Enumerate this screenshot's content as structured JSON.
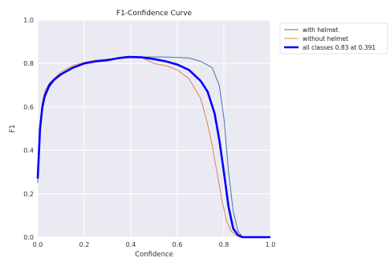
{
  "chart_data": {
    "type": "line",
    "title": "F1-Confidence Curve",
    "xlabel": "Confidence",
    "ylabel": "F1",
    "xlim": [
      0.0,
      1.0
    ],
    "ylim": [
      0.0,
      1.0
    ],
    "xticks": [
      "0.0",
      "0.2",
      "0.4",
      "0.6",
      "0.8",
      "1.0"
    ],
    "yticks": [
      "0.0",
      "0.2",
      "0.4",
      "0.6",
      "0.8",
      "1.0"
    ],
    "grid": true,
    "legend_position": "outside-top-right",
    "series": [
      {
        "name": "with helmet",
        "color": "#4c72b0",
        "x": [
          0.0,
          0.01,
          0.02,
          0.03,
          0.05,
          0.07,
          0.1,
          0.15,
          0.2,
          0.25,
          0.3,
          0.35,
          0.38,
          0.45,
          0.55,
          0.65,
          0.7,
          0.75,
          0.78,
          0.8,
          0.82,
          0.84,
          0.86,
          0.88,
          0.9,
          1.0
        ],
        "values": [
          0.25,
          0.48,
          0.58,
          0.64,
          0.69,
          0.72,
          0.75,
          0.78,
          0.8,
          0.81,
          0.815,
          0.825,
          0.83,
          0.83,
          0.83,
          0.825,
          0.81,
          0.78,
          0.7,
          0.55,
          0.3,
          0.12,
          0.03,
          0.0,
          0.0,
          0.0
        ]
      },
      {
        "name": "without helmet",
        "color": "#dd8452",
        "x": [
          0.0,
          0.01,
          0.02,
          0.03,
          0.05,
          0.07,
          0.1,
          0.15,
          0.2,
          0.25,
          0.3,
          0.35,
          0.4,
          0.45,
          0.5,
          0.55,
          0.6,
          0.65,
          0.7,
          0.73,
          0.75,
          0.77,
          0.79,
          0.81,
          0.83,
          0.85,
          0.87,
          0.9,
          1.0
        ],
        "values": [
          0.3,
          0.52,
          0.62,
          0.67,
          0.71,
          0.73,
          0.76,
          0.79,
          0.805,
          0.815,
          0.82,
          0.825,
          0.83,
          0.825,
          0.8,
          0.79,
          0.77,
          0.73,
          0.64,
          0.52,
          0.42,
          0.3,
          0.18,
          0.08,
          0.03,
          0.01,
          0.0,
          0.0,
          0.0
        ]
      },
      {
        "name": "all classes 0.83 at 0.391",
        "color": "#0000ff",
        "x": [
          0.0,
          0.01,
          0.02,
          0.03,
          0.05,
          0.07,
          0.1,
          0.15,
          0.2,
          0.25,
          0.3,
          0.35,
          0.391,
          0.45,
          0.5,
          0.55,
          0.6,
          0.65,
          0.7,
          0.73,
          0.76,
          0.78,
          0.8,
          0.82,
          0.84,
          0.86,
          0.88,
          0.9,
          1.0
        ],
        "values": [
          0.27,
          0.5,
          0.6,
          0.65,
          0.7,
          0.725,
          0.75,
          0.78,
          0.8,
          0.81,
          0.815,
          0.825,
          0.83,
          0.828,
          0.82,
          0.81,
          0.795,
          0.77,
          0.72,
          0.67,
          0.57,
          0.45,
          0.3,
          0.14,
          0.04,
          0.01,
          0.0,
          0.0,
          0.0
        ]
      }
    ]
  }
}
